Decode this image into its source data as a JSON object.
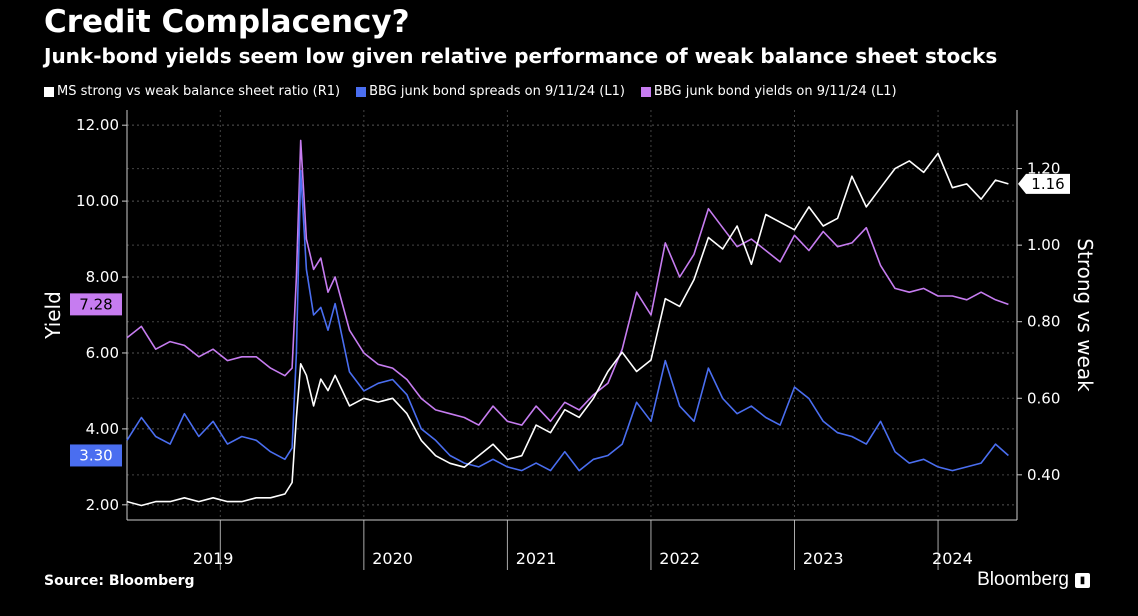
{
  "title": "Credit Complacency?",
  "subtitle": "Junk-bond yields seem low given relative performance of weak balance sheet stocks",
  "legend": [
    {
      "label": "MS strong vs weak balance sheet ratio (R1)",
      "color": "#ffffff"
    },
    {
      "label": "BBG junk bond spreads on 9/11/24 (L1)",
      "color": "#4a6ef0"
    },
    {
      "label": "BBG junk bond yields on 9/11/24 (L1)",
      "color": "#c67cf0"
    }
  ],
  "source": "Source: Bloomberg",
  "brand": "Bloomberg",
  "chart_data": {
    "type": "line",
    "y_left": {
      "label": "Yield",
      "range": [
        1.6,
        12.4
      ],
      "ticks": [
        "12.00",
        "10.00",
        "8.00",
        "6.00",
        "4.00",
        "2.00"
      ],
      "tick_values": [
        12,
        10,
        8,
        6,
        4,
        2
      ]
    },
    "y_right": {
      "label": "Strong vs weak",
      "range": [
        0.282,
        1.353
      ],
      "ticks": [
        "1.20",
        "1.00",
        "0.80",
        "0.60",
        "0.40"
      ],
      "tick_values": [
        1.2,
        1.0,
        0.8,
        0.6,
        0.4
      ]
    },
    "x_range": [
      2018.65,
      2024.85
    ],
    "x_ticks": [
      "2019",
      "2020",
      "2021",
      "2022",
      "2023",
      "2024"
    ],
    "x_tick_values": [
      2019.25,
      2020.5,
      2021.5,
      2022.5,
      2023.5,
      2024.4
    ],
    "x_dividers": [
      2019.3,
      2020.3,
      2021.3,
      2022.3,
      2023.3,
      2024.3
    ],
    "grid": true,
    "end_labels": {
      "yields": "7.28",
      "spreads": "3.30",
      "ratio": "1.16"
    },
    "series": [
      {
        "name": "BBG junk bond yields on 9/11/24 (L1)",
        "axis": "left",
        "color": "#c67cf0",
        "x": [
          2018.65,
          2018.75,
          2018.85,
          2018.95,
          2019.05,
          2019.15,
          2019.25,
          2019.35,
          2019.45,
          2019.55,
          2019.65,
          2019.75,
          2019.8,
          2019.83,
          2019.86,
          2019.9,
          2019.95,
          2020.0,
          2020.05,
          2020.1,
          2020.2,
          2020.3,
          2020.4,
          2020.5,
          2020.6,
          2020.7,
          2020.8,
          2020.9,
          2021.0,
          2021.1,
          2021.2,
          2021.3,
          2021.4,
          2021.5,
          2021.6,
          2021.7,
          2021.8,
          2021.9,
          2022.0,
          2022.1,
          2022.2,
          2022.3,
          2022.4,
          2022.5,
          2022.6,
          2022.7,
          2022.8,
          2022.9,
          2023.0,
          2023.1,
          2023.2,
          2023.3,
          2023.4,
          2023.5,
          2023.6,
          2023.7,
          2023.8,
          2023.9,
          2024.0,
          2024.1,
          2024.2,
          2024.3,
          2024.4,
          2024.5,
          2024.6,
          2024.7,
          2024.79
        ],
        "y": [
          6.4,
          6.7,
          6.1,
          6.3,
          6.2,
          5.9,
          6.1,
          5.8,
          5.9,
          5.9,
          5.6,
          5.4,
          5.6,
          8.0,
          11.6,
          9.0,
          8.2,
          8.5,
          7.6,
          8.0,
          6.6,
          6.0,
          5.7,
          5.6,
          5.3,
          4.8,
          4.5,
          4.4,
          4.3,
          4.1,
          4.6,
          4.2,
          4.1,
          4.6,
          4.2,
          4.7,
          4.5,
          4.9,
          5.2,
          6.1,
          7.6,
          7.0,
          8.9,
          8.0,
          8.6,
          9.8,
          9.3,
          8.8,
          9.0,
          8.7,
          8.4,
          9.1,
          8.7,
          9.2,
          8.8,
          8.9,
          9.3,
          8.3,
          7.7,
          7.6,
          7.7,
          7.5,
          7.5,
          7.4,
          7.6,
          7.4,
          7.28
        ]
      },
      {
        "name": "BBG junk bond spreads on 9/11/24 (L1)",
        "axis": "left",
        "color": "#4a6ef0",
        "x": [
          2018.65,
          2018.75,
          2018.85,
          2018.95,
          2019.05,
          2019.15,
          2019.25,
          2019.35,
          2019.45,
          2019.55,
          2019.65,
          2019.75,
          2019.8,
          2019.83,
          2019.86,
          2019.9,
          2019.95,
          2020.0,
          2020.05,
          2020.1,
          2020.2,
          2020.3,
          2020.4,
          2020.5,
          2020.6,
          2020.7,
          2020.8,
          2020.9,
          2021.0,
          2021.1,
          2021.2,
          2021.3,
          2021.4,
          2021.5,
          2021.6,
          2021.7,
          2021.8,
          2021.9,
          2022.0,
          2022.1,
          2022.2,
          2022.3,
          2022.4,
          2022.5,
          2022.6,
          2022.7,
          2022.8,
          2022.9,
          2023.0,
          2023.1,
          2023.2,
          2023.3,
          2023.4,
          2023.5,
          2023.6,
          2023.7,
          2023.8,
          2023.9,
          2024.0,
          2024.1,
          2024.2,
          2024.3,
          2024.4,
          2024.5,
          2024.6,
          2024.7,
          2024.79
        ],
        "y": [
          3.7,
          4.3,
          3.8,
          3.6,
          4.4,
          3.8,
          4.2,
          3.6,
          3.8,
          3.7,
          3.4,
          3.2,
          3.5,
          6.0,
          10.8,
          8.2,
          7.0,
          7.2,
          6.6,
          7.3,
          5.5,
          5.0,
          5.2,
          5.3,
          4.9,
          4.0,
          3.7,
          3.3,
          3.1,
          3.0,
          3.2,
          3.0,
          2.9,
          3.1,
          2.9,
          3.4,
          2.9,
          3.2,
          3.3,
          3.6,
          4.7,
          4.2,
          5.8,
          4.6,
          4.2,
          5.6,
          4.8,
          4.4,
          4.6,
          4.3,
          4.1,
          5.1,
          4.8,
          4.2,
          3.9,
          3.8,
          3.6,
          4.2,
          3.4,
          3.1,
          3.2,
          3.0,
          2.9,
          3.0,
          3.1,
          3.6,
          3.3
        ]
      },
      {
        "name": "MS strong vs weak balance sheet ratio (R1)",
        "axis": "right",
        "color": "#ffffff",
        "x": [
          2018.65,
          2018.75,
          2018.85,
          2018.95,
          2019.05,
          2019.15,
          2019.25,
          2019.35,
          2019.45,
          2019.55,
          2019.65,
          2019.75,
          2019.8,
          2019.83,
          2019.86,
          2019.9,
          2019.95,
          2020.0,
          2020.05,
          2020.1,
          2020.2,
          2020.3,
          2020.4,
          2020.5,
          2020.6,
          2020.7,
          2020.8,
          2020.9,
          2021.0,
          2021.1,
          2021.2,
          2021.3,
          2021.4,
          2021.5,
          2021.6,
          2021.7,
          2021.8,
          2021.9,
          2022.0,
          2022.1,
          2022.2,
          2022.3,
          2022.4,
          2022.5,
          2022.6,
          2022.7,
          2022.8,
          2022.9,
          2023.0,
          2023.1,
          2023.2,
          2023.3,
          2023.4,
          2023.5,
          2023.6,
          2023.7,
          2023.8,
          2023.9,
          2024.0,
          2024.1,
          2024.2,
          2024.3,
          2024.4,
          2024.5,
          2024.6,
          2024.7,
          2024.79
        ],
        "y": [
          0.33,
          0.32,
          0.33,
          0.33,
          0.34,
          0.33,
          0.34,
          0.33,
          0.33,
          0.34,
          0.34,
          0.35,
          0.38,
          0.55,
          0.69,
          0.66,
          0.58,
          0.65,
          0.62,
          0.66,
          0.58,
          0.6,
          0.59,
          0.6,
          0.56,
          0.49,
          0.45,
          0.43,
          0.42,
          0.45,
          0.48,
          0.44,
          0.45,
          0.53,
          0.51,
          0.57,
          0.55,
          0.6,
          0.67,
          0.72,
          0.67,
          0.7,
          0.86,
          0.84,
          0.91,
          1.02,
          0.99,
          1.05,
          0.95,
          1.08,
          1.06,
          1.04,
          1.1,
          1.05,
          1.07,
          1.18,
          1.1,
          1.15,
          1.2,
          1.22,
          1.19,
          1.24,
          1.15,
          1.16,
          1.12,
          1.17,
          1.16
        ]
      }
    ]
  }
}
